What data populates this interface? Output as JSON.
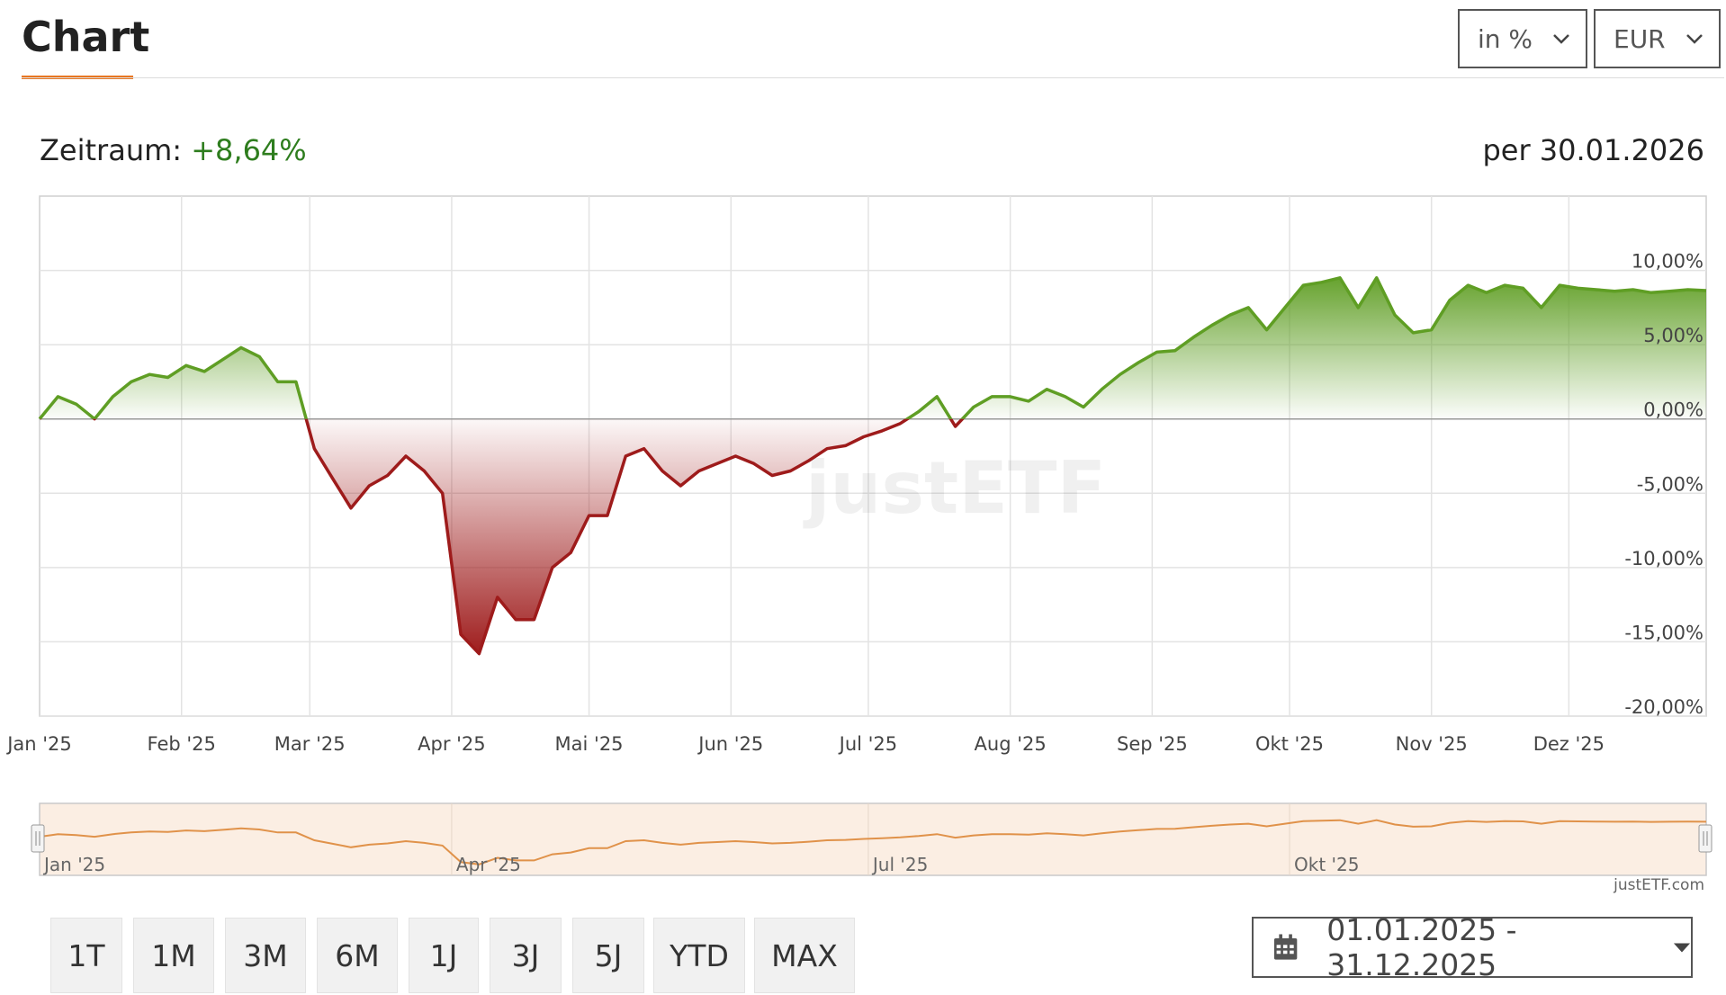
{
  "header": {
    "title": "Chart",
    "unit_select": "in %",
    "currency_select": "EUR"
  },
  "summary": {
    "period_label": "Zeitraum:",
    "period_value": "+8,64%",
    "as_of": "per 30.01.2026"
  },
  "colors": {
    "positive": "#5f9e24",
    "negative": "#9e1b1b",
    "accent": "#e87722",
    "navigator_line": "#e0924a"
  },
  "watermark": "justETF",
  "credit": "justETF.com",
  "range_buttons": [
    "1T",
    "1M",
    "3M",
    "6M",
    "1J",
    "3J",
    "5J",
    "YTD",
    "MAX"
  ],
  "date_range": {
    "icon": "calendar-icon",
    "text": "01.01.2025 - 31.12.2025"
  },
  "navigator": {
    "labels": [
      "Jan '25",
      "Apr '25",
      "Jul '25",
      "Okt '25"
    ]
  },
  "chart_data": {
    "type": "area",
    "title": "",
    "xlabel": "",
    "ylabel": "",
    "x_ticks": [
      "Jan '25",
      "Feb '25",
      "Mar '25",
      "Apr '25",
      "Mai '25",
      "Jun '25",
      "Jul '25",
      "Aug '25",
      "Sep '25",
      "Okt '25",
      "Nov '25",
      "Dez '25"
    ],
    "y_ticks": [
      "10,00%",
      "5,00%",
      "0,00%",
      "-5,00%",
      "-10,00%",
      "-15,00%",
      "-20,00%"
    ],
    "y_tick_values": [
      10,
      5,
      0,
      -5,
      -10,
      -15,
      -20
    ],
    "ylim": [
      -20,
      15
    ],
    "grid": true,
    "series": [
      {
        "x": [
          0,
          4,
          8,
          12,
          16,
          20,
          24,
          28,
          32,
          36,
          40,
          44,
          48,
          52,
          56,
          60,
          64,
          68,
          72,
          76,
          80,
          84,
          88,
          92,
          96,
          100,
          104,
          108,
          112,
          116,
          120,
          124,
          128,
          132,
          136,
          140,
          144,
          148,
          152,
          156,
          160,
          164,
          168,
          172,
          176,
          180,
          184,
          188,
          192,
          196,
          200,
          204,
          208,
          212,
          216,
          220,
          224,
          228,
          232,
          236,
          240,
          244,
          248,
          252,
          256,
          260,
          264,
          268,
          272,
          276,
          280,
          284,
          288,
          292,
          296,
          300,
          304,
          308,
          312,
          316,
          320,
          324,
          328,
          332,
          336,
          340,
          344,
          348,
          352,
          356,
          360,
          364
        ],
        "values": [
          0,
          1.5,
          1.0,
          0,
          1.5,
          2.5,
          3.0,
          2.8,
          3.6,
          3.2,
          4.0,
          4.8,
          4.2,
          2.5,
          2.5,
          -2.0,
          -4.0,
          -6.0,
          -4.5,
          -3.8,
          -2.5,
          -3.5,
          -5.0,
          -14.5,
          -15.8,
          -12.0,
          -13.5,
          -13.5,
          -10.0,
          -9.0,
          -6.5,
          -6.5,
          -2.5,
          -2.0,
          -3.5,
          -4.5,
          -3.5,
          -3.0,
          -2.5,
          -3.0,
          -3.8,
          -3.5,
          -2.8,
          -2.0,
          -1.8,
          -1.2,
          -0.8,
          -0.3,
          0.5,
          1.5,
          -0.5,
          0.8,
          1.5,
          1.5,
          1.2,
          2.0,
          1.5,
          0.8,
          2.0,
          3.0,
          3.8,
          4.5,
          4.6,
          5.5,
          6.3,
          7.0,
          7.5,
          6.0,
          7.5,
          9.0,
          9.2,
          9.5,
          7.5,
          9.5,
          7.0,
          5.8,
          6.0,
          8.0,
          9.0,
          8.5,
          9.0,
          8.8,
          7.5,
          9.0,
          8.8,
          8.7,
          8.6,
          8.7,
          8.5,
          8.6,
          8.7,
          8.64
        ]
      }
    ]
  }
}
